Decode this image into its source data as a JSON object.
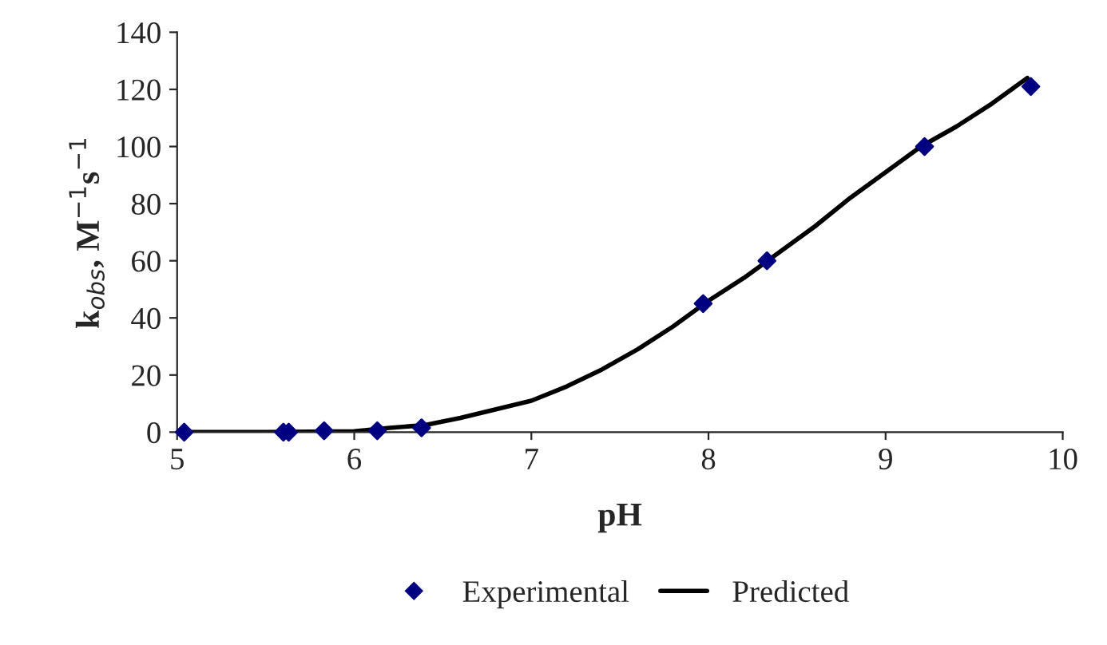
{
  "chart_data": {
    "type": "scatter",
    "xlabel": "pH",
    "ylabel": "k$_{obs}$, M$^{−1}$s$^{−1}$",
    "xlim": [
      5,
      10
    ],
    "xticks": [
      5,
      6,
      7,
      8,
      9,
      10
    ],
    "ylim": [
      0,
      140
    ],
    "yticks": [
      0,
      20,
      40,
      60,
      80,
      100,
      120,
      140
    ],
    "grid": false,
    "legend": "bottom",
    "series": [
      {
        "name": "Experimental",
        "marker": "diamond",
        "color": "#000080",
        "x": [
          5.04,
          5.6,
          5.63,
          5.83,
          6.13,
          6.38,
          7.97,
          8.33,
          9.22,
          9.82
        ],
        "values": [
          0,
          0,
          0,
          0.5,
          0.5,
          1.5,
          45,
          60,
          100,
          121
        ]
      },
      {
        "name": "Predicted",
        "type": "line",
        "marker": "none",
        "line_style": "solid",
        "color": "#000000",
        "x": [
          5.04,
          5.5,
          6.0,
          6.2,
          6.4,
          6.6,
          6.8,
          7.0,
          7.2,
          7.4,
          7.6,
          7.8,
          8.0,
          8.2,
          8.4,
          8.6,
          8.8,
          9.0,
          9.2,
          9.4,
          9.6,
          9.8
        ],
        "values": [
          0,
          0,
          0.3,
          1.5,
          2.5,
          5,
          8,
          11,
          16,
          22,
          29,
          37,
          46,
          54,
          63,
          72,
          82,
          91,
          100,
          107,
          115,
          124
        ]
      }
    ]
  }
}
